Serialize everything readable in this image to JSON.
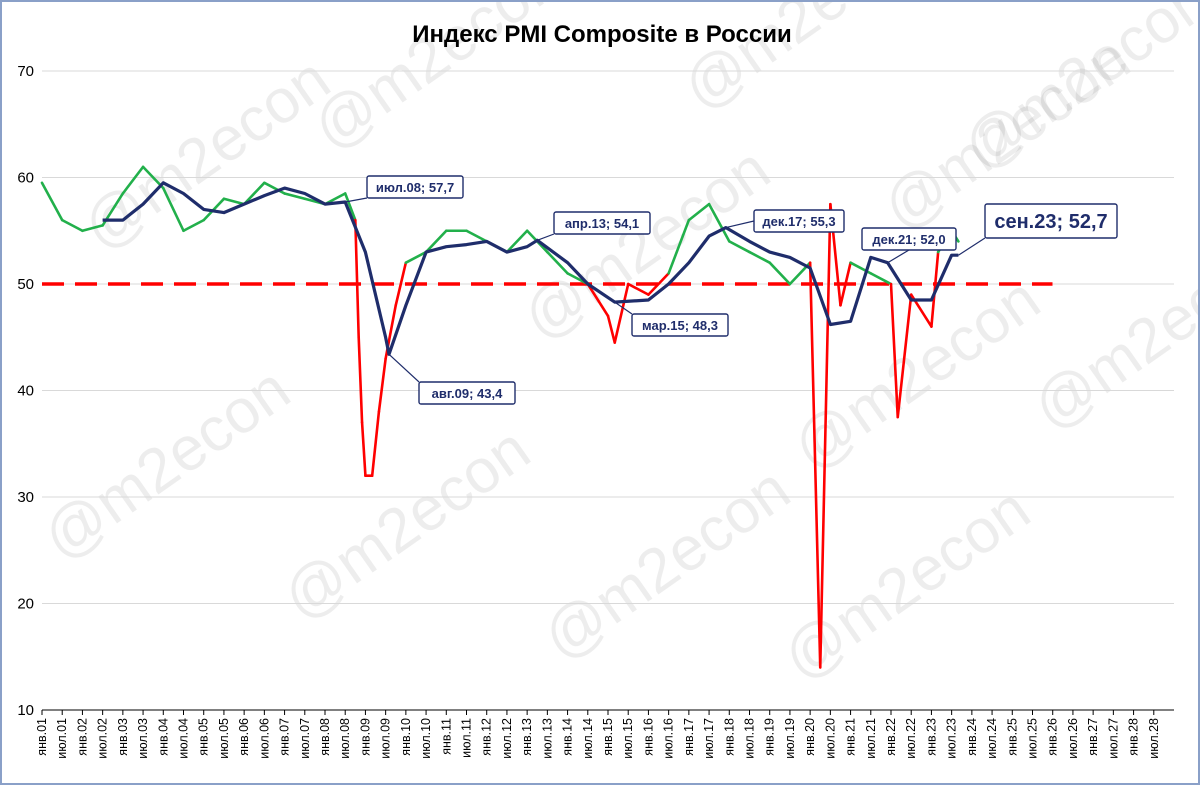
{
  "chart_data": {
    "type": "line",
    "title": "Индекс PMI Composite в России",
    "ylim": [
      10,
      70
    ],
    "yticks": [
      10,
      20,
      30,
      40,
      50,
      60,
      70
    ],
    "x_tick_labels": [
      "янв.01",
      "июл.01",
      "янв.02",
      "июл.02",
      "янв.03",
      "июл.03",
      "янв.04",
      "июл.04",
      "янв.05",
      "июл.05",
      "янв.06",
      "июл.06",
      "янв.07",
      "июл.07",
      "янв.08",
      "июл.08",
      "янв.09",
      "июл.09",
      "янв.10",
      "июл.10",
      "янв.11",
      "июл.11",
      "янв.12",
      "июл.12",
      "янв.13",
      "июл.13",
      "янв.14",
      "июл.14",
      "янв.15",
      "июл.15",
      "янв.16",
      "июл.16",
      "янв.17",
      "июл.17",
      "янв.18",
      "июл.18",
      "янв.19",
      "июл.19",
      "янв.20",
      "июл.20",
      "янв.21",
      "июл.21",
      "янв.22",
      "июл.22",
      "янв.23",
      "июл.23",
      "янв.24",
      "июл.24",
      "янв.25",
      "июл.25",
      "янв.26",
      "июл.26",
      "янв.27",
      "июл.27",
      "янв.28",
      "июл.28"
    ],
    "reference_line": {
      "value": 50,
      "color": "#ff0000",
      "style": "dashed"
    },
    "grid": true,
    "series": [
      {
        "kind": "monthly",
        "color_above": "#22b04b",
        "color_below": "#ff0000",
        "points": [
          [
            "янв.01",
            59.5
          ],
          [
            "июл.01",
            56
          ],
          [
            "янв.02",
            55
          ],
          [
            "июл.02",
            55.5
          ],
          [
            "янв.03",
            58.5
          ],
          [
            "июл.03",
            61
          ],
          [
            "янв.04",
            59
          ],
          [
            "июл.04",
            55
          ],
          [
            "янв.05",
            56
          ],
          [
            "июл.05",
            58
          ],
          [
            "янв.06",
            57.5
          ],
          [
            "июл.06",
            59.5
          ],
          [
            "янв.07",
            58.5
          ],
          [
            "июл.07",
            58
          ],
          [
            "янв.08",
            57.5
          ],
          [
            "июл.08",
            58.5
          ],
          [
            "окт.08",
            56
          ],
          [
            "ноя.08",
            45
          ],
          [
            "дек.08",
            37
          ],
          [
            "янв.09",
            32
          ],
          [
            "мар.09",
            32
          ],
          [
            "май.09",
            38
          ],
          [
            "июл.09",
            43
          ],
          [
            "окт.09",
            48
          ],
          [
            "янв.10",
            52
          ],
          [
            "июл.10",
            53
          ],
          [
            "янв.11",
            55
          ],
          [
            "июл.11",
            55
          ],
          [
            "янв.12",
            54
          ],
          [
            "июл.12",
            53
          ],
          [
            "янв.13",
            55
          ],
          [
            "июл.13",
            53
          ],
          [
            "янв.14",
            51
          ],
          [
            "июл.14",
            50
          ],
          [
            "янв.15",
            47
          ],
          [
            "мар.15",
            44.5
          ],
          [
            "июл.15",
            50
          ],
          [
            "янв.16",
            49
          ],
          [
            "июл.16",
            51
          ],
          [
            "янв.17",
            56
          ],
          [
            "июл.17",
            57.5
          ],
          [
            "янв.18",
            54
          ],
          [
            "июл.18",
            53
          ],
          [
            "янв.19",
            52
          ],
          [
            "июл.19",
            50
          ],
          [
            "янв.20",
            52
          ],
          [
            "апр.20",
            14
          ],
          [
            "июл.20",
            57.5
          ],
          [
            "окт.20",
            48
          ],
          [
            "янв.21",
            52
          ],
          [
            "июл.21",
            51
          ],
          [
            "янв.22",
            50
          ],
          [
            "мар.22",
            37.5
          ],
          [
            "июл.22",
            49
          ],
          [
            "янв.23",
            46
          ],
          [
            "мар.23",
            53
          ],
          [
            "июл.23",
            55
          ],
          [
            "сен.23",
            54
          ]
        ]
      },
      {
        "kind": "moving_average",
        "color": "#1f2d6b",
        "points": [
          [
            "июл.02",
            56
          ],
          [
            "янв.03",
            56
          ],
          [
            "июл.03",
            57.5
          ],
          [
            "янв.04",
            59.5
          ],
          [
            "июл.04",
            58.5
          ],
          [
            "янв.05",
            57
          ],
          [
            "июл.05",
            56.7
          ],
          [
            "янв.06",
            57.5
          ],
          [
            "июл.06",
            58.3
          ],
          [
            "янв.07",
            59
          ],
          [
            "июл.07",
            58.5
          ],
          [
            "янв.08",
            57.5
          ],
          [
            "июл.08",
            57.7
          ],
          [
            "янв.09",
            53
          ],
          [
            "июл.09",
            45
          ],
          [
            "авг.09",
            43.4
          ],
          [
            "янв.10",
            48
          ],
          [
            "июл.10",
            53
          ],
          [
            "янв.11",
            53.5
          ],
          [
            "июл.11",
            53.7
          ],
          [
            "янв.12",
            54
          ],
          [
            "июл.12",
            53
          ],
          [
            "янв.13",
            53.5
          ],
          [
            "апр.13",
            54.1
          ],
          [
            "янв.14",
            52
          ],
          [
            "июл.14",
            50
          ],
          [
            "мар.15",
            48.3
          ],
          [
            "янв.16",
            48.5
          ],
          [
            "июл.16",
            50
          ],
          [
            "янв.17",
            52
          ],
          [
            "июл.17",
            54.5
          ],
          [
            "дек.17",
            55.3
          ],
          [
            "июл.18",
            54
          ],
          [
            "янв.19",
            53
          ],
          [
            "июл.19",
            52.5
          ],
          [
            "янв.20",
            51.5
          ],
          [
            "июл.20",
            46.2
          ],
          [
            "янв.21",
            46.5
          ],
          [
            "июл.21",
            52.5
          ],
          [
            "дек.21",
            52.0
          ],
          [
            "июл.22",
            48.5
          ],
          [
            "янв.23",
            48.5
          ],
          [
            "июл.23",
            52.7
          ],
          [
            "сен.23",
            52.7
          ]
        ]
      }
    ],
    "annotations": [
      {
        "text": "июл.08; 57,7"
      },
      {
        "text": "авг.09; 43,4"
      },
      {
        "text": "апр.13; 54,1"
      },
      {
        "text": "мар.15; 48,3"
      },
      {
        "text": "дек.17; 55,3"
      },
      {
        "text": "дек.21; 52,0"
      },
      {
        "text": "сен.23; 52,7"
      }
    ],
    "watermark": "@m2econ"
  }
}
